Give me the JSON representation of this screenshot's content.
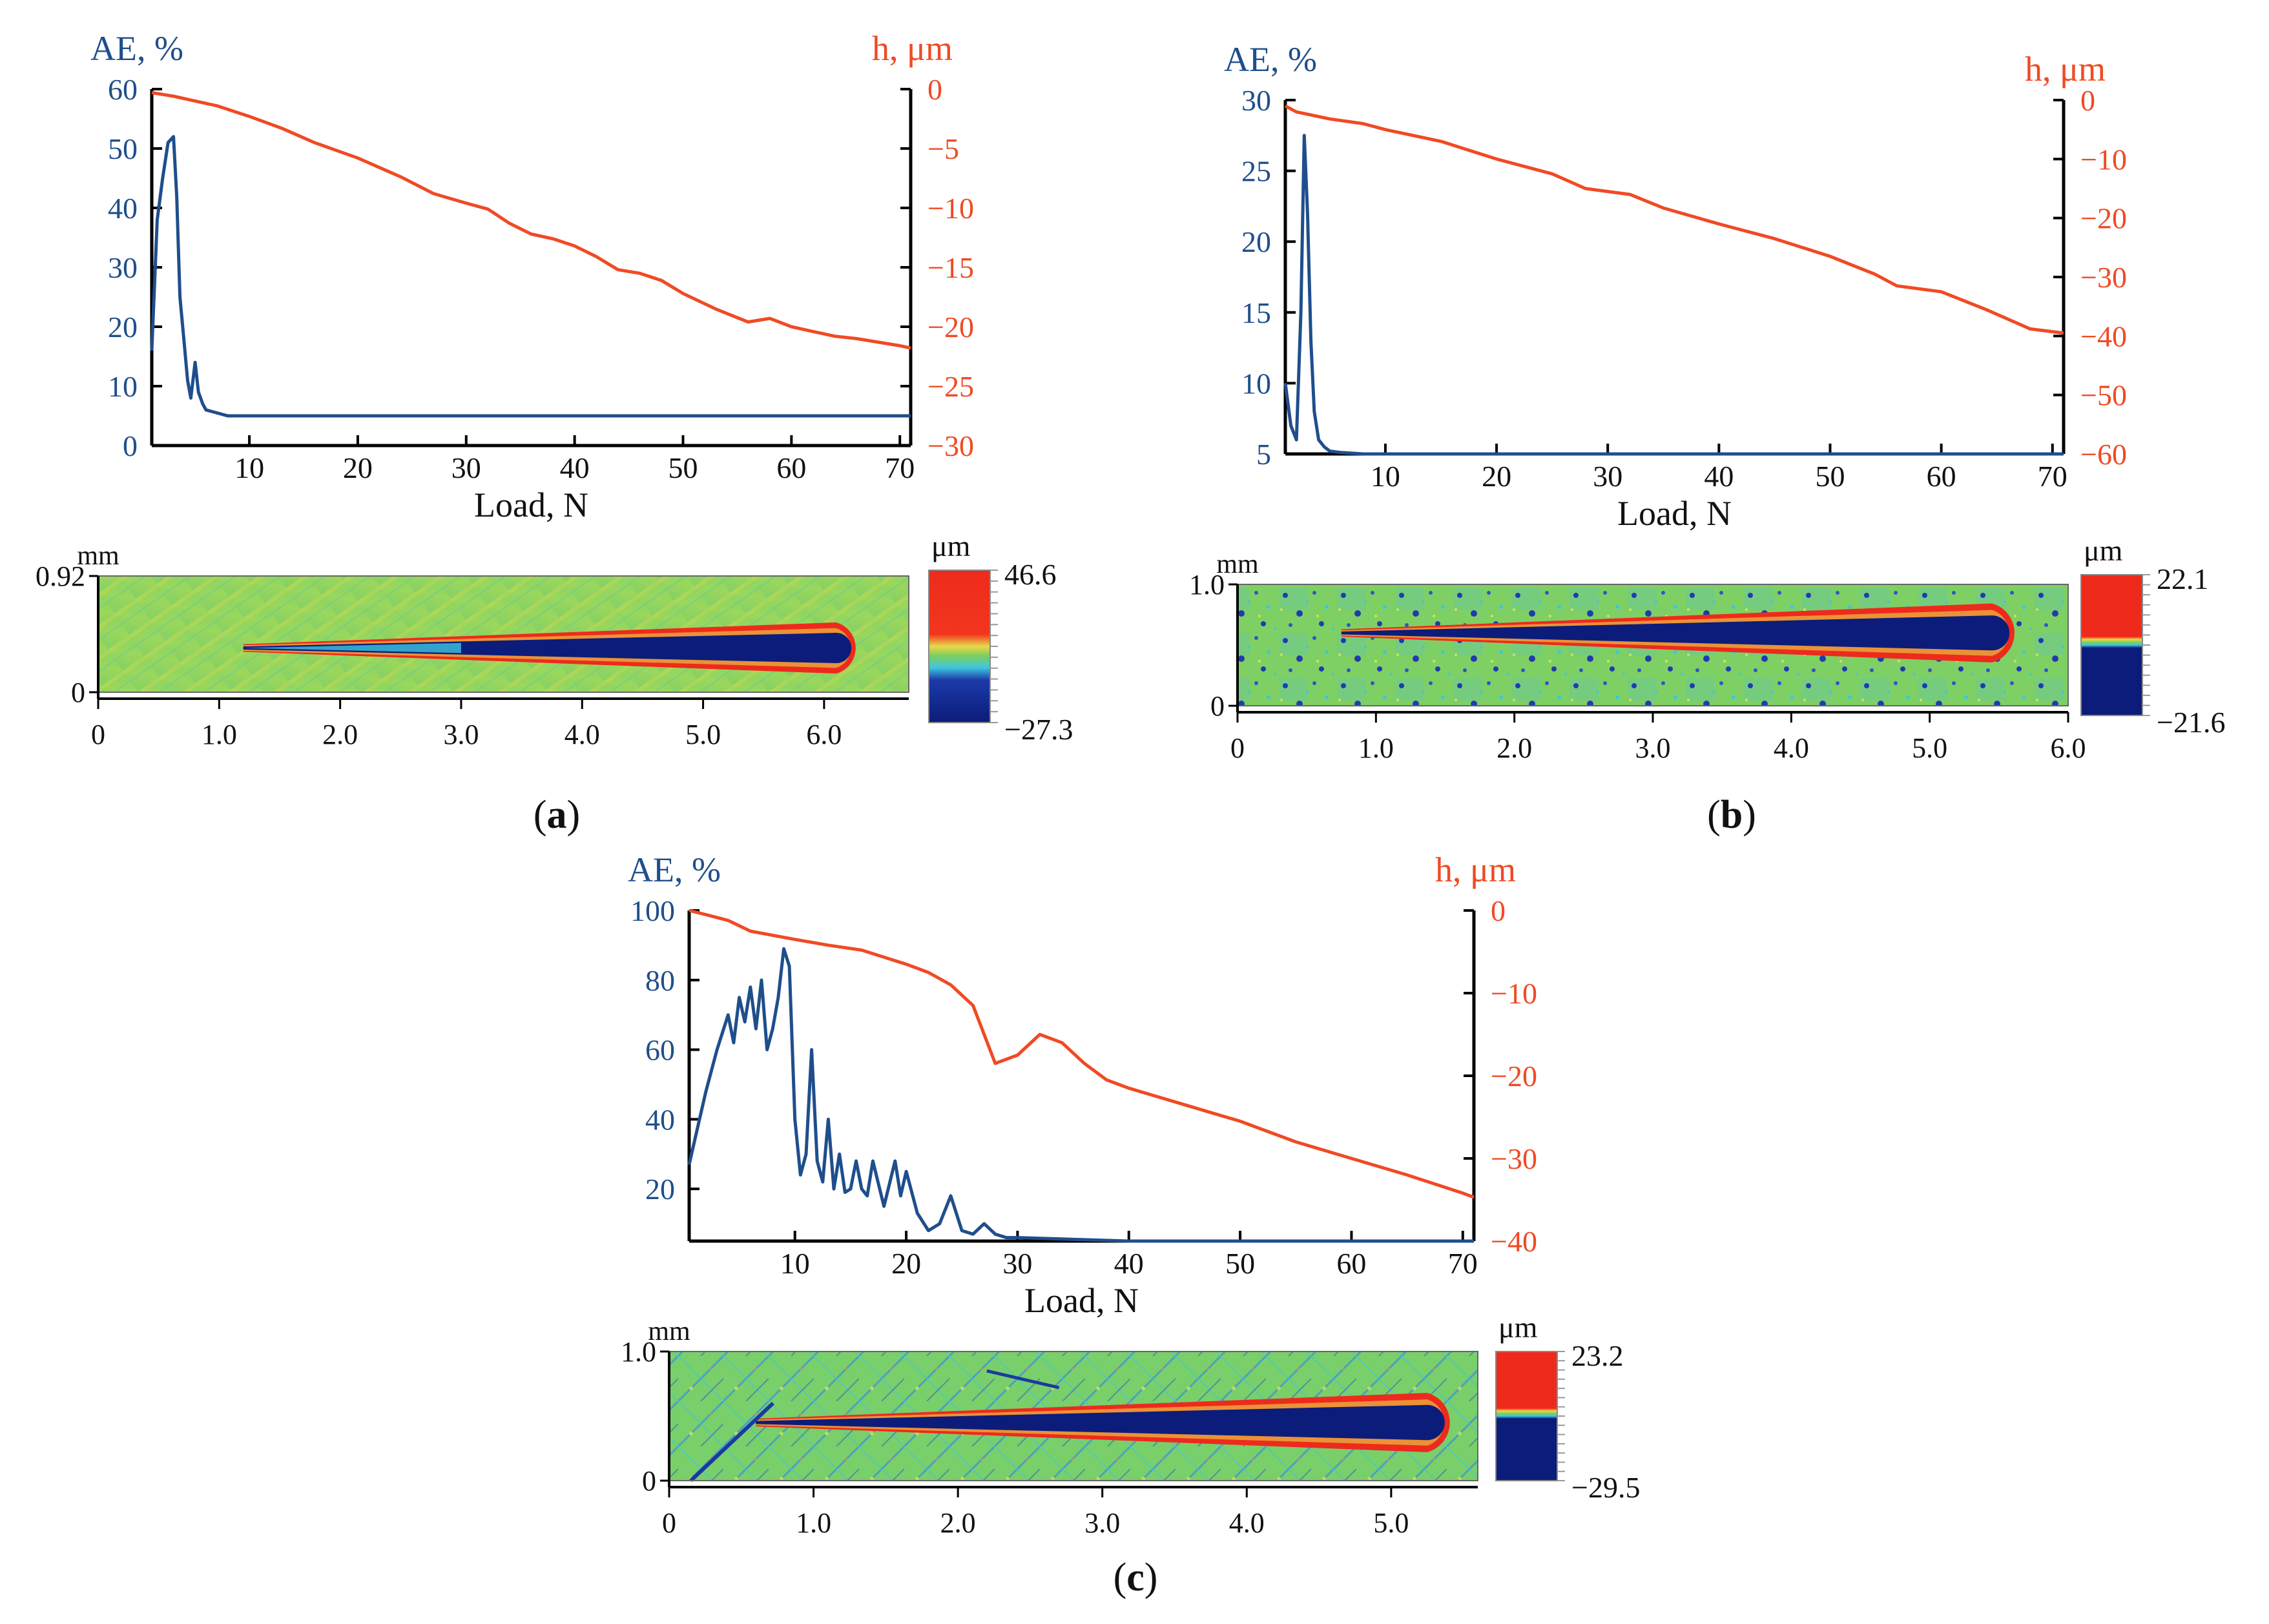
{
  "colors": {
    "ae": "#1f4e8c",
    "h": "#f04a24",
    "axis": "#000000",
    "text": "#111111",
    "map_green": "#7fcf5a",
    "map_red": "#ee2a1c",
    "map_blue": "#0c1c7a",
    "map_yellow": "#e8d84a",
    "map_cyan": "#3fc6e0"
  },
  "panels": [
    {
      "id": "a",
      "label": "a",
      "ae_axis_title": "AE, %",
      "h_axis_title": "h, μm",
      "x_axis_title": "Load, N",
      "map_unit_y": "mm",
      "map_unit_scale": "μm",
      "scale_max": "46.6",
      "scale_min": "−27.3",
      "map_style": "smooth",
      "scale_pattern": "continuous"
    },
    {
      "id": "b",
      "label": "b",
      "ae_axis_title": "AE, %",
      "h_axis_title": "h, μm",
      "x_axis_title": "Load, N",
      "map_unit_y": "mm",
      "map_unit_scale": "μm",
      "scale_max": "22.1",
      "scale_min": "−21.6",
      "map_style": "speckled",
      "scale_pattern": "split"
    },
    {
      "id": "c",
      "label": "c",
      "ae_axis_title": "AE, %",
      "h_axis_title": "h, μm",
      "x_axis_title": "Load, N",
      "map_unit_y": "mm",
      "map_unit_scale": "μm",
      "scale_max": "23.2",
      "scale_min": "−29.5",
      "map_style": "scratched",
      "scale_pattern": "split"
    }
  ],
  "chart_data": [
    {
      "panel": "a",
      "type": "line",
      "xlabel": "Load, N",
      "xlim": [
        1,
        71
      ],
      "xticks": [
        10,
        20,
        30,
        40,
        50,
        60,
        70
      ],
      "series": [
        {
          "name": "AE, %",
          "axis": "left",
          "ylim": [
            0,
            60
          ],
          "yticks": [
            0,
            10,
            20,
            30,
            40,
            50,
            60
          ],
          "x": [
            1,
            1.5,
            2,
            2.5,
            3,
            3.3,
            3.6,
            4,
            4.3,
            4.6,
            5,
            5.3,
            5.7,
            6,
            7,
            8,
            10,
            20,
            30,
            40,
            50,
            60,
            71
          ],
          "y": [
            16,
            38,
            45,
            51,
            52,
            42,
            25,
            17,
            11,
            8,
            14,
            9,
            7,
            6,
            5.5,
            5,
            5,
            5,
            5,
            5,
            5,
            5,
            5
          ]
        },
        {
          "name": "h, μm",
          "axis": "right",
          "ylim": [
            -30,
            0
          ],
          "yticks": [
            0,
            -5,
            -10,
            -15,
            -20,
            -25,
            -30
          ],
          "x": [
            1,
            3,
            5,
            7,
            10,
            13,
            16,
            20,
            24,
            27,
            30,
            32,
            34,
            36,
            38,
            40,
            42,
            44,
            46,
            48,
            50,
            53,
            56,
            58,
            60,
            62,
            64,
            66,
            68,
            70,
            71
          ],
          "y": [
            -0.3,
            -0.6,
            -1.0,
            -1.4,
            -2.3,
            -3.3,
            -4.5,
            -5.8,
            -7.4,
            -8.8,
            -9.6,
            -10.1,
            -11.3,
            -12.2,
            -12.6,
            -13.2,
            -14.1,
            -15.2,
            -15.5,
            -16.1,
            -17.2,
            -18.5,
            -19.6,
            -19.3,
            -20.0,
            -20.4,
            -20.8,
            -21.0,
            -21.3,
            -21.6,
            -21.8
          ]
        }
      ]
    },
    {
      "panel": "b",
      "type": "line",
      "xlabel": "Load, N",
      "xlim": [
        1,
        71
      ],
      "xticks": [
        10,
        20,
        30,
        40,
        50,
        60,
        70
      ],
      "series": [
        {
          "name": "AE, %",
          "axis": "left",
          "ylim": [
            5,
            30
          ],
          "yticks": [
            5,
            10,
            15,
            20,
            25,
            30
          ],
          "x": [
            1,
            1.5,
            2,
            2.4,
            2.7,
            3,
            3.3,
            3.6,
            4,
            4.5,
            5,
            6,
            8,
            10,
            20,
            30,
            40,
            50,
            60,
            71
          ],
          "y": [
            10,
            7,
            6,
            15,
            27.5,
            22,
            13,
            8,
            6,
            5.5,
            5.2,
            5.1,
            5,
            5,
            5,
            5,
            5,
            5,
            5,
            5
          ]
        },
        {
          "name": "h, μm",
          "axis": "right",
          "ylim": [
            -60,
            0
          ],
          "yticks": [
            0,
            -10,
            -20,
            -30,
            -40,
            -50,
            -60
          ],
          "x": [
            1,
            2,
            5,
            8,
            10,
            15,
            20,
            25,
            28,
            32,
            35,
            40,
            45,
            50,
            54,
            56,
            60,
            64,
            68,
            71
          ],
          "y": [
            -1,
            -2,
            -3.2,
            -4,
            -5,
            -7,
            -10,
            -12.5,
            -15,
            -16,
            -18.3,
            -21,
            -23.5,
            -26.5,
            -29.5,
            -31.5,
            -32.5,
            -35.5,
            -38.8,
            -39.5
          ]
        }
      ]
    },
    {
      "panel": "c",
      "type": "line",
      "xlabel": "Load, N",
      "xlim": [
        0.5,
        71
      ],
      "xticks": [
        10,
        20,
        30,
        40,
        50,
        60,
        70
      ],
      "series": [
        {
          "name": "AE, %",
          "axis": "left",
          "ylim": [
            5,
            100
          ],
          "yticks": [
            20,
            40,
            60,
            80,
            100
          ],
          "x": [
            0.5,
            1,
            2,
            3,
            4,
            4.5,
            5,
            5.5,
            6,
            6.5,
            7,
            7.5,
            8,
            8.5,
            9,
            9.5,
            10,
            10.5,
            11,
            11.5,
            12,
            12.5,
            13,
            13.5,
            14,
            14.5,
            15,
            15.5,
            16,
            16.5,
            17,
            18,
            19,
            19.5,
            20,
            21,
            22,
            23,
            24,
            25,
            26,
            27,
            28,
            29,
            30,
            40,
            50,
            60,
            71
          ],
          "y": [
            27,
            34,
            48,
            60,
            70,
            62,
            75,
            68,
            78,
            66,
            80,
            60,
            66,
            75,
            89,
            84,
            40,
            24,
            30,
            60,
            28,
            22,
            40,
            20,
            30,
            19,
            20,
            28,
            20,
            18,
            28,
            15,
            28,
            18,
            25,
            13,
            8,
            10,
            18,
            8,
            7,
            10,
            7,
            6,
            6,
            5,
            5,
            5,
            5
          ]
        },
        {
          "name": "h, μm",
          "axis": "right",
          "ylim": [
            -40,
            0
          ],
          "yticks": [
            0,
            -10,
            -20,
            -30,
            -40
          ],
          "x": [
            0.5,
            2,
            4,
            6,
            10,
            13,
            16,
            20,
            22,
            24,
            26,
            27,
            28,
            30,
            32,
            34,
            36,
            38,
            40,
            45,
            50,
            55,
            60,
            65,
            70,
            71
          ],
          "y": [
            0,
            -0.5,
            -1.2,
            -2.5,
            -3.5,
            -4.2,
            -4.8,
            -6.5,
            -7.5,
            -9,
            -11.5,
            -15,
            -18.5,
            -17.5,
            -15,
            -16,
            -18.5,
            -20.5,
            -21.5,
            -23.5,
            -25.5,
            -28,
            -30,
            -32,
            -34.2,
            -34.7
          ]
        }
      ]
    },
    {
      "panel": "a",
      "type": "heatmap",
      "ylabel": "mm",
      "xlim": [
        0,
        6.7
      ],
      "ylim": [
        0,
        0.92
      ],
      "xticks": [
        "0",
        "1.0",
        "2.0",
        "3.0",
        "4.0",
        "5.0",
        "6.0"
      ],
      "yticks": [
        "0",
        "0.92"
      ],
      "scale_label": "μm",
      "scale_max": 46.6,
      "scale_min": -27.3,
      "groove": {
        "x_start": 1.2,
        "x_end": 6.1,
        "y": 0.35,
        "width_start": 0.02,
        "width_end": 0.15
      }
    },
    {
      "panel": "b",
      "type": "heatmap",
      "ylabel": "mm",
      "xlim": [
        0,
        6.0
      ],
      "ylim": [
        0,
        1.0
      ],
      "xticks": [
        "0",
        "1.0",
        "2.0",
        "3.0",
        "4.0",
        "5.0",
        "6.0"
      ],
      "yticks": [
        "0",
        "1.0"
      ],
      "scale_label": "μm",
      "scale_max": 22.1,
      "scale_min": -21.6,
      "groove": {
        "x_start": 0.75,
        "x_end": 5.45,
        "y": 0.6,
        "width_start": 0.02,
        "width_end": 0.18
      }
    },
    {
      "panel": "c",
      "type": "heatmap",
      "ylabel": "mm",
      "xlim": [
        0,
        5.6
      ],
      "ylim": [
        0,
        1.0
      ],
      "xticks": [
        "0",
        "1.0",
        "2.0",
        "3.0",
        "4.0",
        "5.0"
      ],
      "yticks": [
        "0",
        "1.0"
      ],
      "scale_label": "μm",
      "scale_max": 23.2,
      "scale_min": -29.5,
      "groove": {
        "x_start": 0.6,
        "x_end": 5.25,
        "y": 0.45,
        "width_start": 0.02,
        "width_end": 0.17
      }
    }
  ]
}
